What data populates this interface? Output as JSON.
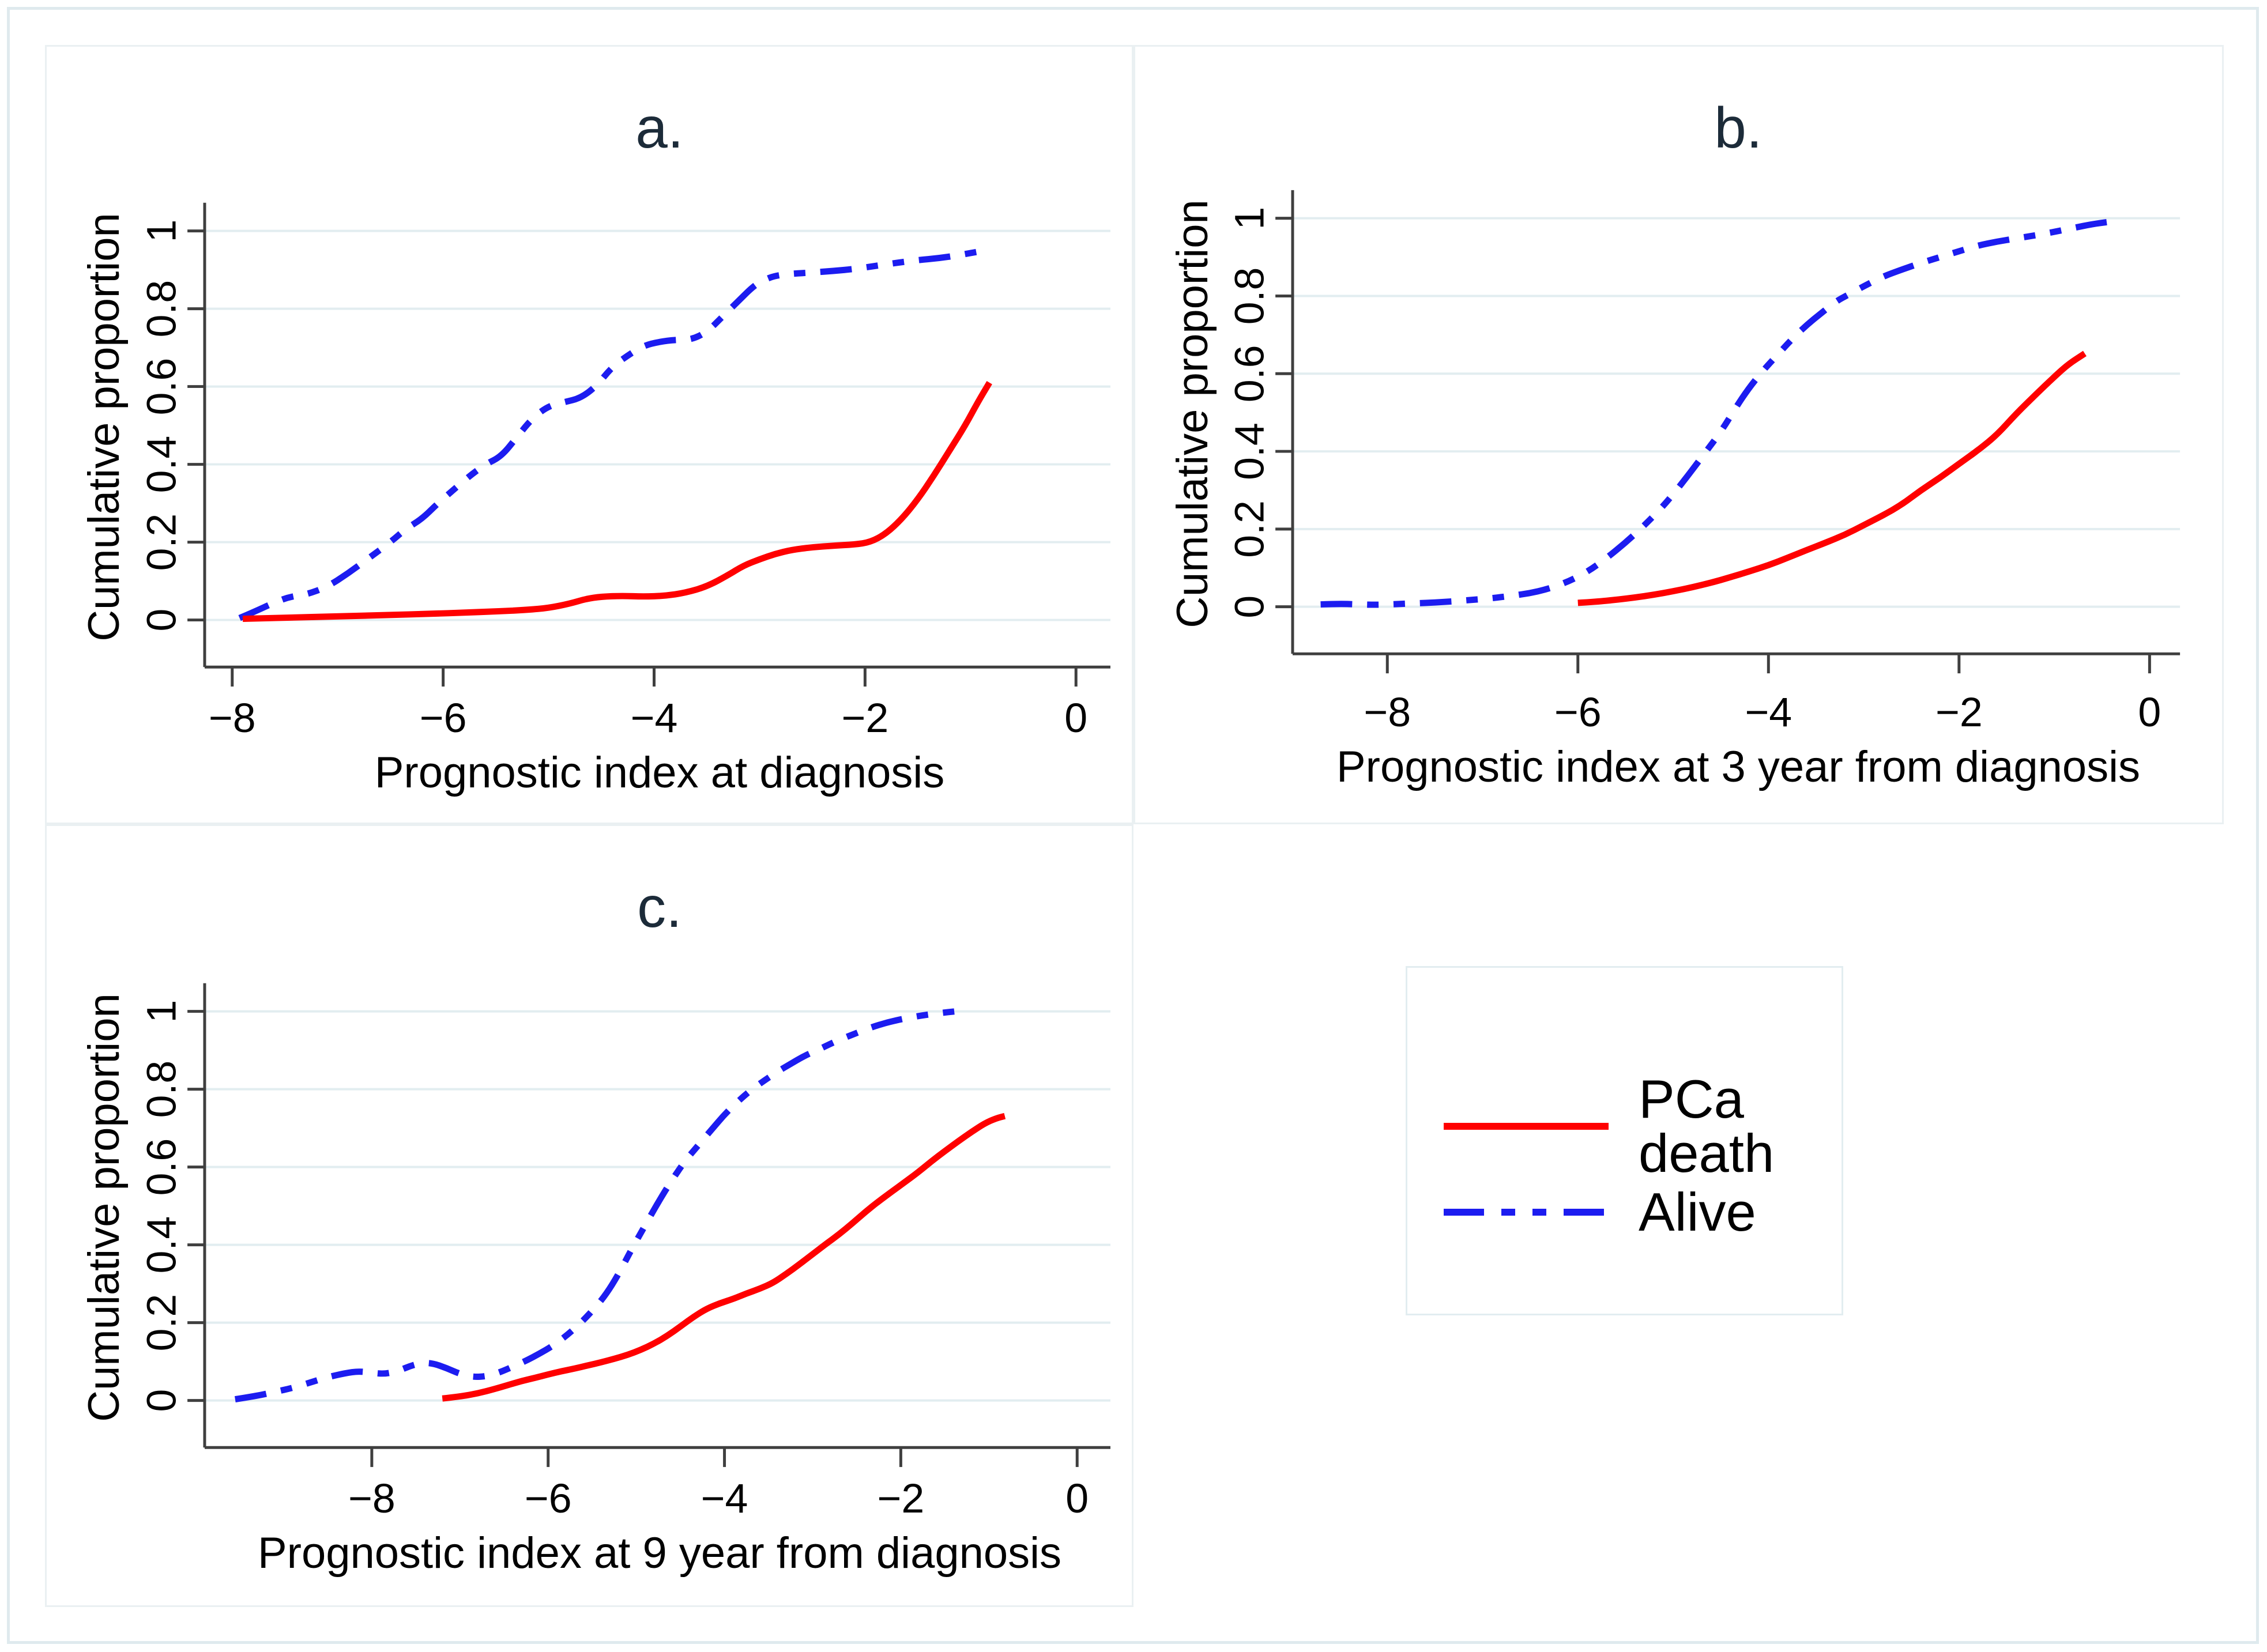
{
  "figure_caption_letters": [
    "a.",
    "b.",
    "c."
  ],
  "legend": {
    "position": "bottom-right",
    "items": [
      {
        "label": "PCa death",
        "series": "pca_death",
        "line_style": "solid"
      },
      {
        "label": "Alive",
        "series": "alive",
        "line_style": "dash-dot-dot"
      }
    ]
  },
  "colors": {
    "pca_death": "#ff0000",
    "alive": "#1c1cf0",
    "grid": "#e2edf0",
    "axis": "#3f3f3f",
    "text": "#000000",
    "panel_title": "#1c2b39",
    "frame_border": "#dfeaee",
    "panel_border": "#eaf0f2",
    "legend_border": "#e2edf0",
    "background": "#ffffff"
  },
  "chart_data": [
    {
      "type": "line",
      "title": "a.",
      "xlabel": "Prognostic index at diagnosis",
      "ylabel": "Cumulative proportion",
      "xlim": [
        -8.3,
        0.35
      ],
      "ylim": [
        0,
        1
      ],
      "xticks": [
        -8,
        -6,
        -4,
        -2,
        0
      ],
      "yticks": [
        0,
        0.2,
        0.4,
        0.6,
        0.8,
        1
      ],
      "grid": "horizontal",
      "series": [
        {
          "name": "PCa death",
          "color": "pca_death",
          "dash": false,
          "points": [
            [
              -7.9,
              0.003
            ],
            [
              -7.5,
              0.006
            ],
            [
              -7.0,
              0.009
            ],
            [
              -6.5,
              0.013
            ],
            [
              -6.1,
              0.016
            ],
            [
              -5.8,
              0.019
            ],
            [
              -5.5,
              0.022
            ],
            [
              -5.2,
              0.026
            ],
            [
              -5.0,
              0.031
            ],
            [
              -4.8,
              0.042
            ],
            [
              -4.65,
              0.054
            ],
            [
              -4.5,
              0.06
            ],
            [
              -4.3,
              0.062
            ],
            [
              -4.1,
              0.06
            ],
            [
              -3.9,
              0.062
            ],
            [
              -3.7,
              0.07
            ],
            [
              -3.5,
              0.086
            ],
            [
              -3.3,
              0.115
            ],
            [
              -3.15,
              0.14
            ],
            [
              -3.0,
              0.156
            ],
            [
              -2.85,
              0.17
            ],
            [
              -2.7,
              0.18
            ],
            [
              -2.5,
              0.187
            ],
            [
              -2.3,
              0.191
            ],
            [
              -2.1,
              0.194
            ],
            [
              -1.95,
              0.2
            ],
            [
              -1.8,
              0.222
            ],
            [
              -1.65,
              0.26
            ],
            [
              -1.5,
              0.31
            ],
            [
              -1.35,
              0.37
            ],
            [
              -1.2,
              0.435
            ],
            [
              -1.05,
              0.5
            ],
            [
              -0.93,
              0.56
            ],
            [
              -0.82,
              0.61
            ]
          ]
        },
        {
          "name": "Alive",
          "color": "alive",
          "dash": true,
          "points": [
            [
              -7.93,
              0.005
            ],
            [
              -7.8,
              0.02
            ],
            [
              -7.6,
              0.045
            ],
            [
              -7.45,
              0.06
            ],
            [
              -7.3,
              0.065
            ],
            [
              -7.1,
              0.085
            ],
            [
              -6.9,
              0.12
            ],
            [
              -6.7,
              0.16
            ],
            [
              -6.5,
              0.2
            ],
            [
              -6.35,
              0.235
            ],
            [
              -6.2,
              0.26
            ],
            [
              -6.05,
              0.3
            ],
            [
              -5.9,
              0.335
            ],
            [
              -5.75,
              0.37
            ],
            [
              -5.6,
              0.4
            ],
            [
              -5.45,
              0.42
            ],
            [
              -5.3,
              0.47
            ],
            [
              -5.15,
              0.52
            ],
            [
              -5.0,
              0.55
            ],
            [
              -4.85,
              0.56
            ],
            [
              -4.7,
              0.57
            ],
            [
              -4.55,
              0.6
            ],
            [
              -4.4,
              0.65
            ],
            [
              -4.25,
              0.68
            ],
            [
              -4.1,
              0.705
            ],
            [
              -3.95,
              0.715
            ],
            [
              -3.8,
              0.72
            ],
            [
              -3.65,
              0.72
            ],
            [
              -3.5,
              0.74
            ],
            [
              -3.35,
              0.78
            ],
            [
              -3.2,
              0.82
            ],
            [
              -3.05,
              0.86
            ],
            [
              -2.95,
              0.875
            ],
            [
              -2.85,
              0.885
            ],
            [
              -2.7,
              0.89
            ],
            [
              -2.5,
              0.893
            ],
            [
              -2.3,
              0.897
            ],
            [
              -2.1,
              0.902
            ],
            [
              -1.9,
              0.91
            ],
            [
              -1.7,
              0.918
            ],
            [
              -1.5,
              0.925
            ],
            [
              -1.3,
              0.93
            ],
            [
              -1.1,
              0.938
            ],
            [
              -0.9,
              0.948
            ]
          ]
        }
      ]
    },
    {
      "type": "line",
      "title": "b.",
      "xlabel": "Prognostic index at 3 year from diagnosis",
      "ylabel": "Cumulative proportion",
      "xlim": [
        -9.0,
        0.35
      ],
      "ylim": [
        0,
        1
      ],
      "xticks": [
        -8,
        -6,
        -4,
        -2,
        0
      ],
      "yticks": [
        0,
        0.2,
        0.4,
        0.6,
        0.8,
        1
      ],
      "grid": "horizontal",
      "series": [
        {
          "name": "PCa death",
          "color": "pca_death",
          "dash": false,
          "points": [
            [
              -6.0,
              0.01
            ],
            [
              -5.8,
              0.013
            ],
            [
              -5.6,
              0.018
            ],
            [
              -5.4,
              0.024
            ],
            [
              -5.2,
              0.031
            ],
            [
              -5.0,
              0.04
            ],
            [
              -4.8,
              0.05
            ],
            [
              -4.6,
              0.062
            ],
            [
              -4.4,
              0.076
            ],
            [
              -4.2,
              0.091
            ],
            [
              -4.0,
              0.107
            ],
            [
              -3.8,
              0.126
            ],
            [
              -3.6,
              0.146
            ],
            [
              -3.4,
              0.165
            ],
            [
              -3.2,
              0.185
            ],
            [
              -3.0,
              0.21
            ],
            [
              -2.8,
              0.235
            ],
            [
              -2.6,
              0.263
            ],
            [
              -2.4,
              0.3
            ],
            [
              -2.2,
              0.332
            ],
            [
              -2.0,
              0.368
            ],
            [
              -1.8,
              0.403
            ],
            [
              -1.6,
              0.443
            ],
            [
              -1.4,
              0.497
            ],
            [
              -1.2,
              0.545
            ],
            [
              -1.0,
              0.592
            ],
            [
              -0.85,
              0.625
            ],
            [
              -0.68,
              0.652
            ]
          ]
        },
        {
          "name": "Alive",
          "color": "alive",
          "dash": true,
          "points": [
            [
              -8.7,
              0.006
            ],
            [
              -8.5,
              0.008
            ],
            [
              -8.3,
              0.006
            ],
            [
              -8.1,
              0.005
            ],
            [
              -7.9,
              0.007
            ],
            [
              -7.7,
              0.009
            ],
            [
              -7.5,
              0.011
            ],
            [
              -7.3,
              0.014
            ],
            [
              -7.1,
              0.018
            ],
            [
              -6.9,
              0.022
            ],
            [
              -6.7,
              0.028
            ],
            [
              -6.5,
              0.035
            ],
            [
              -6.3,
              0.047
            ],
            [
              -6.1,
              0.065
            ],
            [
              -5.9,
              0.09
            ],
            [
              -5.7,
              0.125
            ],
            [
              -5.5,
              0.165
            ],
            [
              -5.3,
              0.21
            ],
            [
              -5.1,
              0.26
            ],
            [
              -4.9,
              0.32
            ],
            [
              -4.7,
              0.385
            ],
            [
              -4.5,
              0.45
            ],
            [
              -4.35,
              0.51
            ],
            [
              -4.2,
              0.565
            ],
            [
              -4.05,
              0.61
            ],
            [
              -3.9,
              0.65
            ],
            [
              -3.75,
              0.69
            ],
            [
              -3.6,
              0.725
            ],
            [
              -3.45,
              0.755
            ],
            [
              -3.3,
              0.785
            ],
            [
              -3.15,
              0.805
            ],
            [
              -3.0,
              0.825
            ],
            [
              -2.8,
              0.85
            ],
            [
              -2.6,
              0.868
            ],
            [
              -2.4,
              0.885
            ],
            [
              -2.2,
              0.9
            ],
            [
              -2.0,
              0.915
            ],
            [
              -1.8,
              0.93
            ],
            [
              -1.6,
              0.94
            ],
            [
              -1.4,
              0.948
            ],
            [
              -1.2,
              0.956
            ],
            [
              -1.0,
              0.965
            ],
            [
              -0.8,
              0.975
            ],
            [
              -0.6,
              0.985
            ],
            [
              -0.45,
              0.99
            ]
          ]
        }
      ]
    },
    {
      "type": "line",
      "title": "c.",
      "xlabel": "Prognostic index at 9 year from diagnosis",
      "ylabel": "Cumulative proportion",
      "xlim": [
        -9.9,
        0.38
      ],
      "ylim": [
        0,
        1
      ],
      "xticks": [
        -8,
        -6,
        -4,
        -2,
        0
      ],
      "yticks": [
        0,
        0.2,
        0.4,
        0.6,
        0.8,
        1
      ],
      "grid": "horizontal",
      "series": [
        {
          "name": "PCa death",
          "color": "pca_death",
          "dash": false,
          "points": [
            [
              -7.2,
              0.005
            ],
            [
              -7.0,
              0.01
            ],
            [
              -6.8,
              0.018
            ],
            [
              -6.6,
              0.03
            ],
            [
              -6.45,
              0.04
            ],
            [
              -6.3,
              0.05
            ],
            [
              -6.15,
              0.058
            ],
            [
              -6.0,
              0.067
            ],
            [
              -5.85,
              0.075
            ],
            [
              -5.7,
              0.082
            ],
            [
              -5.55,
              0.09
            ],
            [
              -5.4,
              0.098
            ],
            [
              -5.25,
              0.107
            ],
            [
              -5.1,
              0.117
            ],
            [
              -4.95,
              0.13
            ],
            [
              -4.8,
              0.146
            ],
            [
              -4.65,
              0.166
            ],
            [
              -4.5,
              0.19
            ],
            [
              -4.35,
              0.215
            ],
            [
              -4.2,
              0.236
            ],
            [
              -4.05,
              0.25
            ],
            [
              -3.9,
              0.261
            ],
            [
              -3.75,
              0.275
            ],
            [
              -3.6,
              0.287
            ],
            [
              -3.45,
              0.302
            ],
            [
              -3.3,
              0.325
            ],
            [
              -3.15,
              0.35
            ],
            [
              -3.0,
              0.376
            ],
            [
              -2.85,
              0.402
            ],
            [
              -2.7,
              0.427
            ],
            [
              -2.55,
              0.455
            ],
            [
              -2.4,
              0.485
            ],
            [
              -2.25,
              0.512
            ],
            [
              -2.1,
              0.537
            ],
            [
              -1.95,
              0.562
            ],
            [
              -1.8,
              0.587
            ],
            [
              -1.65,
              0.615
            ],
            [
              -1.5,
              0.641
            ],
            [
              -1.35,
              0.666
            ],
            [
              -1.2,
              0.69
            ],
            [
              -1.05,
              0.712
            ],
            [
              -0.92,
              0.725
            ],
            [
              -0.82,
              0.731
            ]
          ]
        },
        {
          "name": "Alive",
          "color": "alive",
          "dash": true,
          "points": [
            [
              -9.55,
              0.003
            ],
            [
              -9.3,
              0.012
            ],
            [
              -9.1,
              0.022
            ],
            [
              -8.9,
              0.032
            ],
            [
              -8.7,
              0.046
            ],
            [
              -8.5,
              0.06
            ],
            [
              -8.3,
              0.07
            ],
            [
              -8.15,
              0.075
            ],
            [
              -8.0,
              0.071
            ],
            [
              -7.85,
              0.068
            ],
            [
              -7.7,
              0.076
            ],
            [
              -7.55,
              0.09
            ],
            [
              -7.42,
              0.097
            ],
            [
              -7.3,
              0.095
            ],
            [
              -7.15,
              0.083
            ],
            [
              -7.0,
              0.068
            ],
            [
              -6.85,
              0.06
            ],
            [
              -6.7,
              0.062
            ],
            [
              -6.55,
              0.072
            ],
            [
              -6.4,
              0.087
            ],
            [
              -6.25,
              0.102
            ],
            [
              -6.1,
              0.12
            ],
            [
              -5.95,
              0.14
            ],
            [
              -5.8,
              0.165
            ],
            [
              -5.65,
              0.195
            ],
            [
              -5.5,
              0.23
            ],
            [
              -5.35,
              0.27
            ],
            [
              -5.2,
              0.325
            ],
            [
              -5.05,
              0.39
            ],
            [
              -4.9,
              0.45
            ],
            [
              -4.75,
              0.51
            ],
            [
              -4.6,
              0.565
            ],
            [
              -4.45,
              0.615
            ],
            [
              -4.3,
              0.655
            ],
            [
              -4.15,
              0.695
            ],
            [
              -4.0,
              0.735
            ],
            [
              -3.85,
              0.768
            ],
            [
              -3.7,
              0.798
            ],
            [
              -3.55,
              0.822
            ],
            [
              -3.4,
              0.845
            ],
            [
              -3.25,
              0.865
            ],
            [
              -3.1,
              0.885
            ],
            [
              -2.95,
              0.9
            ],
            [
              -2.75,
              0.922
            ],
            [
              -2.55,
              0.94
            ],
            [
              -2.35,
              0.958
            ],
            [
              -2.15,
              0.972
            ],
            [
              -1.95,
              0.982
            ],
            [
              -1.75,
              0.99
            ],
            [
              -1.55,
              0.996
            ],
            [
              -1.38,
              1.0
            ]
          ]
        }
      ]
    }
  ]
}
